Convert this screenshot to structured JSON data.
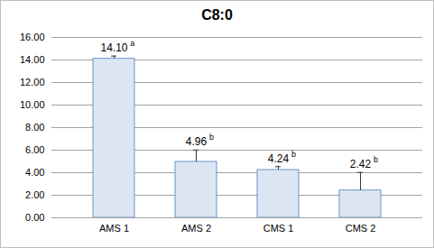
{
  "chart_data": {
    "type": "bar",
    "title": "C8:0",
    "categories": [
      "AMS 1",
      "AMS 2",
      "CMS 1",
      "CMS 2"
    ],
    "values": [
      14.1,
      4.96,
      4.24,
      2.42
    ],
    "value_labels": [
      "14.10",
      "4.96",
      "4.24",
      "2.42"
    ],
    "significance": [
      "a",
      "b",
      "b",
      "b"
    ],
    "errors": [
      0.25,
      1.05,
      0.3,
      1.6
    ],
    "color": "#dce6f2",
    "ylim": [
      0,
      16
    ],
    "yticks": [
      {
        "value": 0,
        "label": "0.00"
      },
      {
        "value": 2,
        "label": "2.00"
      },
      {
        "value": 4,
        "label": "4.00"
      },
      {
        "value": 6,
        "label": "6.00"
      },
      {
        "value": 8,
        "label": "8.00"
      },
      {
        "value": 10,
        "label": "10.00"
      },
      {
        "value": 12,
        "label": "12.00"
      },
      {
        "value": 14,
        "label": "14.00"
      },
      {
        "value": 16,
        "label": "16.00"
      }
    ],
    "grid": true,
    "data_labels": true
  }
}
